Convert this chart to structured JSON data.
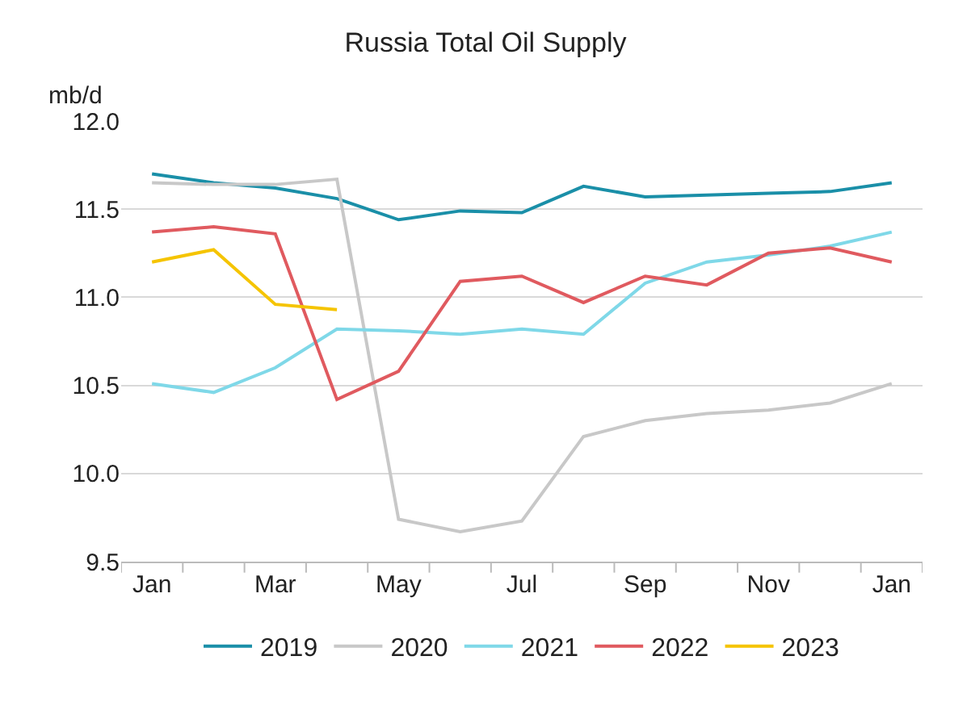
{
  "chart_data": {
    "type": "line",
    "title": "Russia Total Oil Supply",
    "ylabel": "mb/d",
    "categories": [
      "Jan",
      null,
      "Mar",
      null,
      "May",
      null,
      "Jul",
      null,
      "Sep",
      null,
      "Nov",
      null,
      "Jan"
    ],
    "series": [
      {
        "name": "2019",
        "color": "#1a8fa8",
        "values": [
          11.7,
          11.65,
          11.62,
          11.56,
          11.44,
          11.49,
          11.48,
          11.63,
          11.57,
          11.58,
          11.59,
          11.6,
          11.65
        ]
      },
      {
        "name": "2020",
        "color": "#c8c8c8",
        "values": [
          11.65,
          11.64,
          11.64,
          11.67,
          9.74,
          9.67,
          9.73,
          10.21,
          10.3,
          10.34,
          10.36,
          10.4,
          10.51
        ]
      },
      {
        "name": "2021",
        "color": "#7fd8e8",
        "values": [
          10.51,
          10.46,
          10.6,
          10.82,
          10.81,
          10.79,
          10.82,
          10.79,
          11.08,
          11.2,
          11.24,
          11.29,
          11.37
        ]
      },
      {
        "name": "2022",
        "color": "#e05a5f",
        "values": [
          11.37,
          11.4,
          11.36,
          10.42,
          10.58,
          11.09,
          11.12,
          10.97,
          11.12,
          11.07,
          11.25,
          11.28,
          11.2
        ]
      },
      {
        "name": "2023",
        "color": "#f5c400",
        "values": [
          11.2,
          11.27,
          10.96,
          10.93,
          null,
          null,
          null,
          null,
          null,
          null,
          null,
          null,
          null
        ]
      }
    ],
    "ylim": [
      9.5,
      12.0
    ],
    "yticks": [
      {
        "value": 9.5,
        "label": "9.5"
      },
      {
        "value": 10,
        "label": "10.0"
      },
      {
        "value": 10.5,
        "label": "10.5"
      },
      {
        "value": 11,
        "label": "11.0"
      },
      {
        "value": 11.5,
        "label": "11.5"
      },
      {
        "value": 12,
        "label": "12.0"
      }
    ],
    "grid": "y",
    "legend": "bottom",
    "marker": "none",
    "line_style": "solid"
  }
}
